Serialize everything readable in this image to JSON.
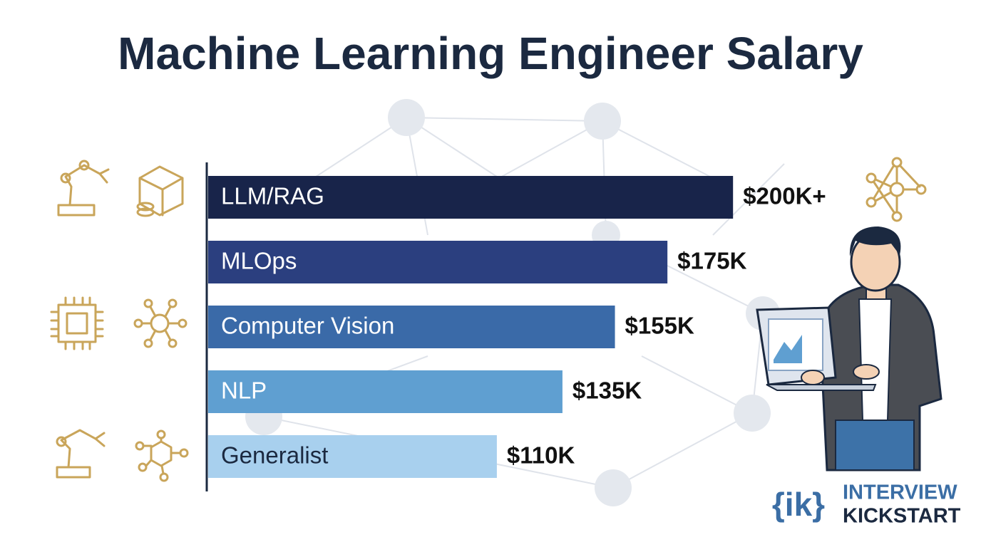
{
  "chart_data": {
    "type": "bar",
    "orientation": "horizontal",
    "title": "Machine Learning Engineer Salary",
    "categories": [
      "LLM/RAG",
      "MLOps",
      "Computer Vision",
      "NLP",
      "Generalist"
    ],
    "values": [
      200,
      175,
      155,
      135,
      110
    ],
    "value_labels": [
      "$200K+",
      "$175K",
      "$155K",
      "$135K",
      "$110K"
    ],
    "colors": [
      "#18244a",
      "#2b3f7f",
      "#3a6aa8",
      "#5f9fd1",
      "#a8d0ee"
    ],
    "xlim": [
      0,
      210
    ]
  },
  "logo": {
    "mark": "{ik}",
    "line1": "INTERVIEW",
    "line2": "KICKSTART"
  }
}
